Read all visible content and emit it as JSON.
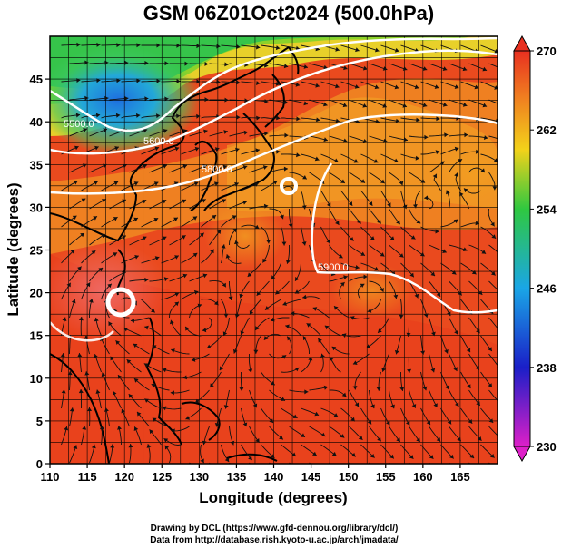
{
  "title": "GSM 06Z01Oct2024 (500.0hPa)",
  "map": {
    "xlabel": "Longitude (degrees)",
    "ylabel": "Latitude  (degrees)",
    "xlim": [
      110,
      170
    ],
    "ylim": [
      0,
      50
    ],
    "x_ticks": [
      "110",
      "115",
      "120",
      "125",
      "130",
      "135",
      "140",
      "145",
      "150",
      "155",
      "160",
      "165"
    ],
    "y_ticks": [
      "0",
      "5",
      "10",
      "15",
      "20",
      "25",
      "30",
      "35",
      "40",
      "45"
    ],
    "grid": true,
    "grid_step_degrees": 2.5
  },
  "colorbar": {
    "ticks": [
      "230",
      "238",
      "246",
      "254",
      "262",
      "270"
    ],
    "range": [
      230,
      270
    ],
    "colors": [
      "#dd1fc8",
      "#1a1fc8",
      "#1aa6e6",
      "#2fc840",
      "#f2d21a",
      "#f08020",
      "#e83020"
    ]
  },
  "contours": {
    "labels": [
      "5500.0",
      "5600.0",
      "5800.0",
      "5900.0"
    ]
  },
  "credits": {
    "line1": "Drawing by DCL (https://www.gfd-dennou.org/library/dcl/)",
    "line2": "Data from http://database.rish.kyoto-u.ac.jp/arch/jmadata/"
  },
  "chart_data": {
    "type": "heatmap",
    "title": "GSM 06Z01Oct2024 (500.0hPa)",
    "xlabel": "Longitude (degrees)",
    "ylabel": "Latitude  (degrees)",
    "xlim": [
      110,
      170
    ],
    "ylim": [
      0,
      50
    ],
    "colorbar_range": [
      230,
      270
    ],
    "contour_labels": [
      "5500.0",
      "5600.0",
      "5800.0",
      "5900.0"
    ],
    "cyclone_centers": [
      {
        "lon": 119.5,
        "lat": 21.0
      },
      {
        "lon": 142.0,
        "lat": 34.7
      }
    ],
    "legend_position": "right"
  }
}
